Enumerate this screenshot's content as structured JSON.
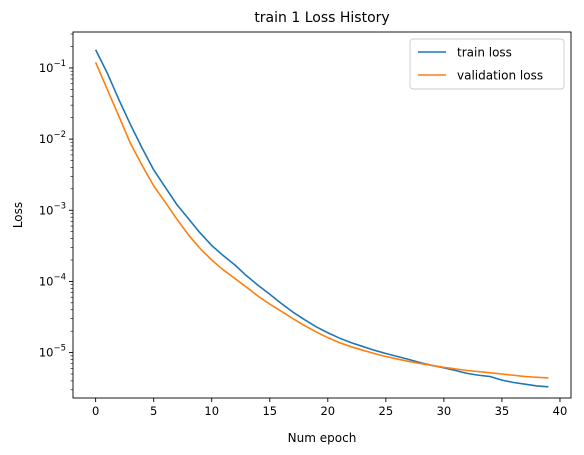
{
  "chart_data": {
    "type": "line",
    "title": "train 1 Loss History",
    "xlabel": "Num epoch",
    "ylabel": "Loss",
    "yscale": "log",
    "xlim": [
      -1.95,
      40.95
    ],
    "ylim": [
      2.3e-06,
      0.32
    ],
    "x_ticks": [
      0,
      5,
      10,
      15,
      20,
      25,
      30,
      35,
      40
    ],
    "y_ticks": [
      {
        "value": 1e-05,
        "base": "10",
        "exp": "−5"
      },
      {
        "value": 0.0001,
        "base": "10",
        "exp": "−4"
      },
      {
        "value": 0.001,
        "base": "10",
        "exp": "−3"
      },
      {
        "value": 0.01,
        "base": "10",
        "exp": "−2"
      },
      {
        "value": 0.1,
        "base": "10",
        "exp": "−1"
      }
    ],
    "grid": false,
    "legend": "top-right",
    "x": [
      0,
      1,
      2,
      3,
      4,
      5,
      6,
      7,
      8,
      9,
      10,
      11,
      12,
      13,
      14,
      15,
      16,
      17,
      18,
      19,
      20,
      21,
      22,
      23,
      24,
      25,
      26,
      27,
      28,
      29,
      30,
      31,
      32,
      33,
      34,
      35,
      36,
      37,
      38,
      39
    ],
    "series": [
      {
        "name": "train loss",
        "color": "#1f77b4",
        "values": [
          0.18,
          0.085,
          0.036,
          0.016,
          0.0075,
          0.0037,
          0.0021,
          0.0012,
          0.00076,
          0.00048,
          0.00032,
          0.00023,
          0.00017,
          0.00012,
          8.8e-05,
          6.6e-05,
          4.9e-05,
          3.7e-05,
          2.9e-05,
          2.3e-05,
          1.9e-05,
          1.6e-05,
          1.38e-05,
          1.22e-05,
          1.08e-05,
          9.7e-06,
          8.8e-06,
          8e-06,
          7.2e-06,
          6.6e-06,
          6.1e-06,
          5.6e-06,
          5.1e-06,
          4.8e-06,
          4.6e-06,
          4.1e-06,
          3.8e-06,
          3.6e-06,
          3.4e-06,
          3.3e-06
        ]
      },
      {
        "name": "validation loss",
        "color": "#ff7f0e",
        "values": [
          0.12,
          0.05,
          0.021,
          0.0087,
          0.0043,
          0.0022,
          0.0013,
          0.00075,
          0.00045,
          0.00029,
          0.0002,
          0.000145,
          0.00011,
          8.3e-05,
          6.2e-05,
          4.8e-05,
          3.8e-05,
          3e-05,
          2.4e-05,
          1.95e-05,
          1.62e-05,
          1.38e-05,
          1.21e-05,
          1.08e-05,
          9.7e-06,
          8.8e-06,
          8.1e-06,
          7.5e-06,
          7e-06,
          6.6e-06,
          6.2e-06,
          5.9e-06,
          5.6e-06,
          5.4e-06,
          5.2e-06,
          5e-06,
          4.8e-06,
          4.6e-06,
          4.5e-06,
          4.4e-06
        ]
      }
    ]
  }
}
